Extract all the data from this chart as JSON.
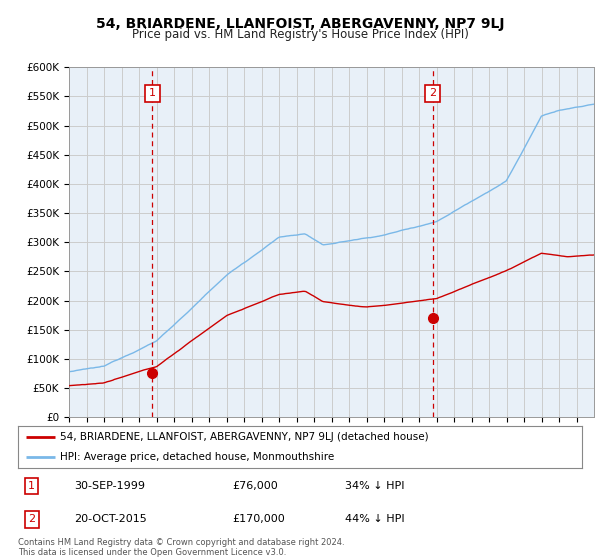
{
  "title": "54, BRIARDENE, LLANFOIST, ABERGAVENNY, NP7 9LJ",
  "subtitle": "Price paid vs. HM Land Registry's House Price Index (HPI)",
  "ylabel_ticks": [
    "£0",
    "£50K",
    "£100K",
    "£150K",
    "£200K",
    "£250K",
    "£300K",
    "£350K",
    "£400K",
    "£450K",
    "£500K",
    "£550K",
    "£600K"
  ],
  "ytick_values": [
    0,
    50000,
    100000,
    150000,
    200000,
    250000,
    300000,
    350000,
    400000,
    450000,
    500000,
    550000,
    600000
  ],
  "hpi_color": "#7ab8e8",
  "hpi_fill_color": "#ddeeff",
  "sale_color": "#cc0000",
  "marker_color": "#cc0000",
  "vline_color": "#cc0000",
  "grid_color": "#cccccc",
  "bg_color": "#ffffff",
  "plot_bg_color": "#e8f0f8",
  "sale1_year": 1999.75,
  "sale1_price": 76000,
  "sale2_year": 2015.79,
  "sale2_price": 170000,
  "sale1_date": "30-SEP-1999",
  "sale1_pct": "34% ↓ HPI",
  "sale2_date": "20-OCT-2015",
  "sale2_pct": "44% ↓ HPI",
  "legend1": "54, BRIARDENE, LLANFOIST, ABERGAVENNY, NP7 9LJ (detached house)",
  "legend2": "HPI: Average price, detached house, Monmouthshire",
  "footer": "Contains HM Land Registry data © Crown copyright and database right 2024.\nThis data is licensed under the Open Government Licence v3.0.",
  "xmin": 1995,
  "xmax": 2025,
  "ymin": 0,
  "ymax": 600000
}
